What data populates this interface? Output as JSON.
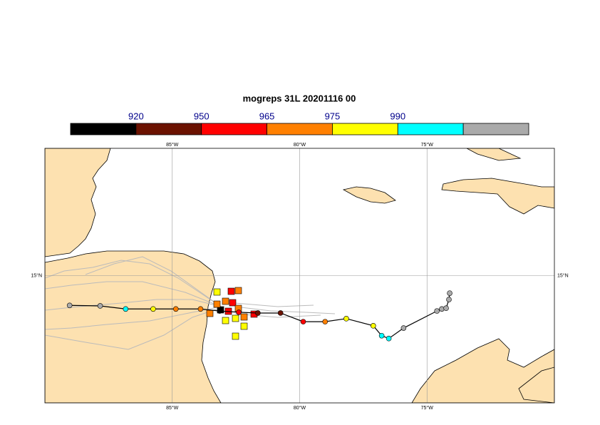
{
  "title": "mogreps 31L 20201116 00",
  "colorbar": {
    "labels": [
      920,
      950,
      965,
      975,
      990
    ],
    "colors": [
      "#000000",
      "#6b1200",
      "#ff0000",
      "#ff8000",
      "#ffff00",
      "#00ffff",
      "#aaaaaa"
    ]
  },
  "map": {
    "xlim": [
      -90,
      -70
    ],
    "ylim": [
      10,
      20
    ],
    "xticks": [
      {
        "value": -85,
        "label": "85°W"
      },
      {
        "value": -80,
        "label": "80°W"
      },
      {
        "value": -75,
        "label": "75°W"
      }
    ],
    "yticks": [
      {
        "value": 15,
        "label": "15°N"
      }
    ]
  },
  "track": {
    "lon": [
      -89.03,
      -87.83,
      -86.83,
      -85.75,
      -84.86,
      -83.89,
      -83.14,
      -82.39,
      -81.64,
      -80.75,
      -79.86,
      -79.0,
      -78.17,
      -77.11,
      -76.78,
      -76.5,
      -75.92,
      -74.61,
      -74.42,
      -74.25,
      -74.14,
      -74.11
    ],
    "lat": [
      13.83,
      13.81,
      13.69,
      13.69,
      13.69,
      13.69,
      13.61,
      13.56,
      13.53,
      13.53,
      13.19,
      13.19,
      13.31,
      13.03,
      12.64,
      12.53,
      12.94,
      13.61,
      13.69,
      13.72,
      14.06,
      14.31
    ],
    "colors": [
      "#aaaaaa",
      "#aaaaaa",
      "#00ffff",
      "#ffff00",
      "#ff8000",
      "#ff8000",
      "#000000",
      "#ff0000",
      "#6b1200",
      "#6b1200",
      "#ff0000",
      "#ff8000",
      "#ffff00",
      "#ffff00",
      "#00ffff",
      "#00ffff",
      "#aaaaaa",
      "#aaaaaa",
      "#aaaaaa",
      "#aaaaaa",
      "#aaaaaa",
      "#aaaaaa"
    ]
  }
}
